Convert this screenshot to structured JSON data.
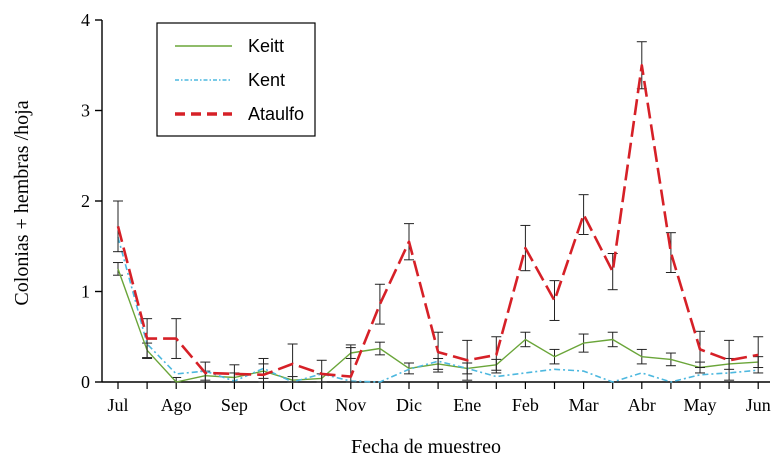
{
  "chart_data": {
    "type": "line",
    "title": "",
    "xlabel": "Fecha de muestreo",
    "ylabel": "Colonias + hembras /hoja",
    "ylim": [
      0,
      4
    ],
    "yticks": [
      "0",
      "1",
      "2",
      "3",
      "4"
    ],
    "month_labels": [
      "Jul",
      "Ago",
      "Sep",
      "Oct",
      "Nov",
      "Dic",
      "Ene",
      "Feb",
      "Mar",
      "Abr",
      "May",
      "Jun"
    ],
    "x": [
      0,
      0.5,
      1,
      1.5,
      2,
      2.5,
      3,
      3.5,
      4,
      4.5,
      5,
      5.5,
      6,
      6.5,
      7,
      7.5,
      8,
      8.5,
      9,
      9.5,
      10,
      10.5,
      11
    ],
    "legend_position": "top-left",
    "series": [
      {
        "name": "Keitt",
        "color": "#6aa539",
        "style": "solid",
        "values": [
          1.25,
          0.35,
          0.0,
          0.07,
          0.05,
          0.12,
          0.02,
          0.04,
          0.32,
          0.37,
          0.15,
          0.2,
          0.15,
          0.19,
          0.47,
          0.28,
          0.43,
          0.47,
          0.28,
          0.25,
          0.16,
          0.2,
          0.22
        ],
        "errors": [
          0.07,
          0.08,
          0.05,
          0.05,
          0.05,
          0.08,
          0.04,
          0.05,
          0.06,
          0.07,
          0.06,
          0.06,
          0.06,
          0.06,
          0.08,
          0.08,
          0.1,
          0.08,
          0.08,
          0.07,
          0.06,
          0.06,
          0.06
        ]
      },
      {
        "name": "Kent",
        "color": "#4db8df",
        "style": "dashdot",
        "values": [
          1.6,
          0.42,
          0.09,
          0.12,
          0.01,
          0.15,
          0.0,
          0.09,
          0.01,
          0.0,
          0.14,
          0.23,
          0.15,
          0.06,
          0.1,
          0.14,
          0.12,
          0.0,
          0.1,
          0.0,
          0.08,
          0.1,
          0.13
        ]
      },
      {
        "name": "Ataulfo",
        "color": "#d62027",
        "style": "dash",
        "values": [
          1.72,
          0.48,
          0.48,
          0.1,
          0.09,
          0.08,
          0.2,
          0.09,
          0.06,
          0.86,
          1.55,
          0.33,
          0.24,
          0.3,
          1.48,
          0.9,
          1.85,
          1.22,
          3.5,
          1.43,
          0.36,
          0.24,
          0.3
        ],
        "errors": [
          0.28,
          0.22,
          0.22,
          0.12,
          0.1,
          0.18,
          0.22,
          0.15,
          0.35,
          0.22,
          0.2,
          0.22,
          0.22,
          0.2,
          0.25,
          0.22,
          0.22,
          0.2,
          0.26,
          0.22,
          0.2,
          0.22,
          0.2
        ]
      }
    ]
  }
}
